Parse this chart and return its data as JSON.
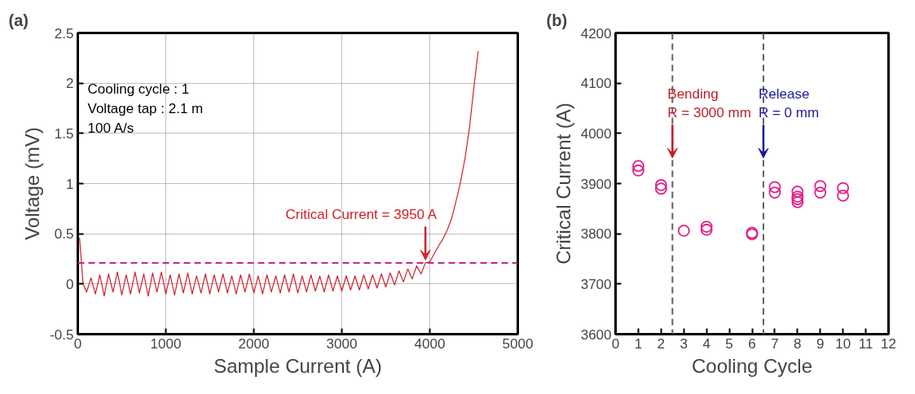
{
  "chart_data": [
    {
      "type": "line",
      "title": "(a)",
      "xlabel": "Sample Current (A)",
      "ylabel": "Voltage (mV)",
      "xlim": [
        0,
        5000
      ],
      "xticks": [
        0,
        1000,
        2000,
        3000,
        4000,
        5000
      ],
      "ylim": [
        -0.5,
        2.5
      ],
      "yticks": [
        -0.5,
        0,
        0.5,
        1,
        1.5,
        2,
        2.5
      ],
      "grid": true,
      "line_style": "solid",
      "marker": "none",
      "series": [
        {
          "color": "#d0202a",
          "x": [
            20,
            60,
            100,
            150,
            200,
            250,
            300,
            350,
            400,
            450,
            500,
            550,
            600,
            650,
            700,
            750,
            800,
            850,
            900,
            950,
            1000,
            1050,
            1100,
            1150,
            1200,
            1250,
            1300,
            1350,
            1400,
            1450,
            1500,
            1550,
            1600,
            1650,
            1700,
            1750,
            1800,
            1850,
            1900,
            1950,
            2000,
            2050,
            2100,
            2150,
            2200,
            2250,
            2300,
            2350,
            2400,
            2450,
            2500,
            2550,
            2600,
            2650,
            2700,
            2750,
            2800,
            2850,
            2900,
            2950,
            3000,
            3050,
            3100,
            3150,
            3200,
            3250,
            3300,
            3350,
            3400,
            3450,
            3500,
            3550,
            3600,
            3650,
            3700,
            3750,
            3800,
            3850,
            3900,
            3950,
            4000,
            4050,
            4100,
            4150,
            4200,
            4250,
            4300,
            4350,
            4400,
            4450,
            4500,
            4550
          ],
          "values": [
            0.46,
            0.0,
            -0.08,
            0.06,
            -0.1,
            0.09,
            -0.12,
            0.1,
            -0.08,
            0.12,
            -0.11,
            0.09,
            -0.1,
            0.12,
            -0.09,
            0.1,
            -0.12,
            0.11,
            -0.08,
            0.12,
            -0.1,
            0.09,
            -0.11,
            0.1,
            -0.09,
            0.11,
            -0.1,
            0.08,
            -0.09,
            0.1,
            -0.1,
            0.09,
            -0.08,
            0.1,
            -0.09,
            0.08,
            -0.1,
            0.09,
            -0.08,
            0.1,
            -0.09,
            0.08,
            -0.1,
            0.09,
            -0.08,
            0.08,
            -0.09,
            0.09,
            -0.08,
            0.1,
            -0.09,
            0.08,
            -0.08,
            0.09,
            -0.07,
            0.08,
            -0.08,
            0.09,
            -0.07,
            0.08,
            -0.07,
            0.08,
            -0.06,
            0.08,
            -0.06,
            0.09,
            -0.05,
            0.09,
            -0.04,
            0.1,
            -0.03,
            0.11,
            -0.01,
            0.13,
            0.02,
            0.15,
            0.05,
            0.18,
            0.1,
            0.21,
            0.22,
            0.3,
            0.38,
            0.45,
            0.54,
            0.66,
            0.83,
            1.02,
            1.25,
            1.55,
            1.95,
            2.32
          ]
        }
      ],
      "ref_lines": [
        {
          "axis": "y",
          "value": 0.21,
          "color": "#c02890",
          "line_style": "dashed"
        }
      ],
      "annotations": [
        "Cooling cycle : 1",
        "Voltage tap : 2.1 m",
        "100 A/s",
        {
          "text": "Critical Current = 3950 A",
          "x": 3950,
          "y": 0.21
        }
      ]
    },
    {
      "type": "scatter",
      "title": "(b)",
      "xlabel": "Cooling Cycle",
      "ylabel": "Critical Current (A)",
      "xlim": [
        0,
        12
      ],
      "xticks": [
        0,
        1,
        2,
        3,
        4,
        5,
        6,
        7,
        8,
        9,
        10,
        11,
        12
      ],
      "ylim": [
        3600,
        4200
      ],
      "yticks": [
        3600,
        3700,
        3800,
        3900,
        4000,
        4100,
        4200
      ],
      "grid": false,
      "marker": "circle",
      "series": [
        {
          "color": "#e0208a",
          "x": [
            1,
            1,
            2,
            2,
            3,
            4,
            4,
            6,
            6,
            7,
            7,
            8,
            8,
            8,
            8,
            9,
            9,
            10,
            10
          ],
          "values": [
            3935,
            3926,
            3897,
            3890,
            3806,
            3814,
            3808,
            3802,
            3799,
            3893,
            3882,
            3884,
            3874,
            3869,
            3863,
            3895,
            3882,
            3891,
            3876
          ]
        }
      ],
      "ref_lines": [
        {
          "axis": "x",
          "value": 2.5,
          "color": "#606060",
          "line_style": "dashed"
        },
        {
          "axis": "x",
          "value": 6.5,
          "color": "#606060",
          "line_style": "dashed"
        }
      ],
      "annotations": [
        {
          "text": "Bending\nR = 3000 mm",
          "x": 2.5,
          "y": 3945
        },
        {
          "text": "Release\nR = 0 mm",
          "x": 6.5,
          "y": 3945
        }
      ]
    }
  ]
}
